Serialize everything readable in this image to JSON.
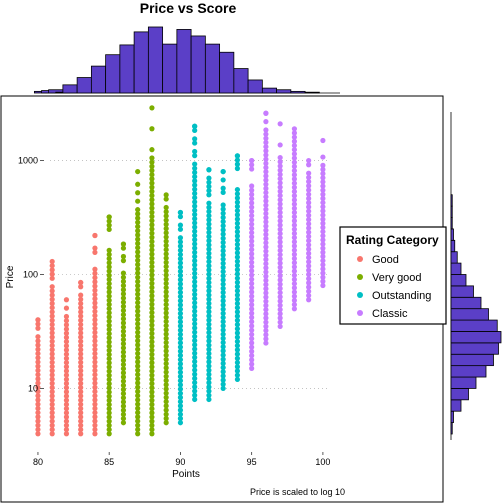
{
  "chart_data": {
    "type": "scatter",
    "title": "Price vs Score",
    "xlabel": "Points",
    "ylabel": "Price",
    "caption": "Price is scaled to log 10",
    "xlim": [
      78.6,
      101.2
    ],
    "ylim": [
      3.0,
      3400
    ],
    "y_scale": "log10",
    "x_ticks": [
      80,
      85,
      90,
      95,
      100
    ],
    "x_tick_labels": [
      "80",
      "85",
      "90",
      "95",
      "100"
    ],
    "y_ticks": [
      10,
      100,
      1000
    ],
    "y_tick_labels": [
      "10",
      "100",
      "1000"
    ],
    "grid": "dotted horizontal at y ticks",
    "legend": {
      "title": "Rating Category",
      "position": "right",
      "entries": [
        {
          "label": "Good",
          "color": "#f8766d"
        },
        {
          "label": "Very good",
          "color": "#7cae00"
        },
        {
          "label": "Outstanding",
          "color": "#00bfc4"
        },
        {
          "label": "Classic",
          "color": "#c77cff"
        }
      ]
    },
    "series": [
      {
        "category": "Good",
        "color": "#f8766d",
        "columns": [
          {
            "x": 80,
            "min": 4,
            "max": 40
          },
          {
            "x": 81,
            "min": 4,
            "max": 130
          },
          {
            "x": 82,
            "min": 4,
            "max": 60
          },
          {
            "x": 83,
            "min": 4,
            "max": 85
          },
          {
            "x": 84,
            "min": 4,
            "max": 220
          }
        ]
      },
      {
        "category": "Very good",
        "color": "#7cae00",
        "columns": [
          {
            "x": 85,
            "min": 4,
            "max": 320
          },
          {
            "x": 86,
            "min": 5,
            "max": 185
          },
          {
            "x": 87,
            "min": 4,
            "max": 800
          },
          {
            "x": 88,
            "min": 4,
            "max": 2900
          },
          {
            "x": 89,
            "min": 5,
            "max": 500
          }
        ]
      },
      {
        "category": "Outstanding",
        "color": "#00bfc4",
        "columns": [
          {
            "x": 90,
            "min": 5,
            "max": 350
          },
          {
            "x": 91,
            "min": 8,
            "max": 2000
          },
          {
            "x": 92,
            "min": 8,
            "max": 830
          },
          {
            "x": 93,
            "min": 10,
            "max": 800
          },
          {
            "x": 94,
            "min": 12,
            "max": 1100
          }
        ]
      },
      {
        "category": "Classic",
        "color": "#c77cff",
        "columns": [
          {
            "x": 95,
            "min": 15,
            "max": 1000
          },
          {
            "x": 96,
            "min": 25,
            "max": 2600
          },
          {
            "x": 97,
            "min": 35,
            "max": 2100
          },
          {
            "x": 98,
            "min": 50,
            "max": 1900
          },
          {
            "x": 99,
            "min": 60,
            "max": 1000
          },
          {
            "x": 100,
            "min": 80,
            "max": 1500
          }
        ]
      }
    ],
    "marginal_histograms": {
      "fill": "#5b3fc7",
      "top_points": {
        "bins": [
          80,
          80.5,
          81,
          81.5,
          82,
          82.5,
          83,
          83.5,
          84,
          84.5,
          85,
          85.5,
          86,
          86.5,
          87,
          87.5,
          88,
          88.5,
          89,
          89.5,
          90,
          90.5,
          91,
          91.5,
          92,
          92.5,
          93,
          93.5,
          94,
          94.5,
          95,
          95.5,
          96,
          96.5,
          97,
          97.5,
          98,
          98.5,
          99,
          99.5
        ],
        "counts": [
          2,
          3,
          4,
          1,
          10,
          0,
          19,
          0,
          33,
          0,
          47,
          0,
          59,
          0,
          75,
          0,
          81,
          0,
          60,
          0,
          78,
          0,
          70,
          0,
          60,
          0,
          50,
          0,
          30,
          0,
          16,
          0,
          6,
          0,
          4,
          0,
          2,
          0,
          1,
          0
        ]
      },
      "right_price": {
        "note": "histogram of log10(price)",
        "bins": [
          0.6,
          0.7,
          0.8,
          0.9,
          1.0,
          1.1,
          1.2,
          1.3,
          1.4,
          1.5,
          1.6,
          1.7,
          1.8,
          1.9,
          2.0,
          2.1,
          2.2,
          2.3,
          2.4,
          2.5,
          2.6,
          2.7,
          2.8,
          2.9,
          3.0,
          3.1,
          3.2,
          3.3,
          3.4
        ],
        "counts": [
          1,
          2,
          8,
          14,
          20,
          28,
          34,
          38,
          40,
          37,
          30,
          24,
          18,
          12,
          8,
          5,
          3,
          2,
          1,
          1,
          1,
          0,
          0,
          0,
          0,
          0,
          0,
          0,
          0
        ]
      }
    }
  }
}
